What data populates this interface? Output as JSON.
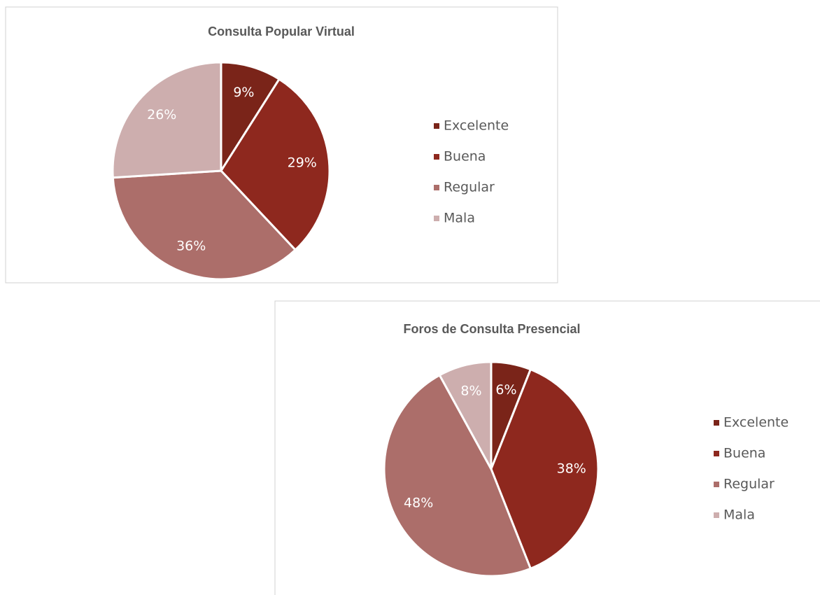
{
  "chart_data": [
    {
      "type": "pie",
      "title": "Consulta Popular Virtual",
      "categories": [
        "Excelente",
        "Buena",
        "Regular",
        "Mala"
      ],
      "values": [
        9,
        29,
        36,
        26
      ],
      "value_labels": [
        "9%",
        "29%",
        "36%",
        "26%"
      ],
      "colors": [
        "#7a2419",
        "#8e281e",
        "#ac6e6a",
        "#cdaeae"
      ]
    },
    {
      "type": "pie",
      "title": "Foros de Consulta Presencial",
      "categories": [
        "Excelente",
        "Buena",
        "Regular",
        "Mala"
      ],
      "values": [
        6,
        38,
        48,
        8
      ],
      "value_labels": [
        "6%",
        "38%",
        "48%",
        "8%"
      ],
      "colors": [
        "#7a2419",
        "#8e281e",
        "#ac6e6a",
        "#cdaeae"
      ]
    }
  ]
}
